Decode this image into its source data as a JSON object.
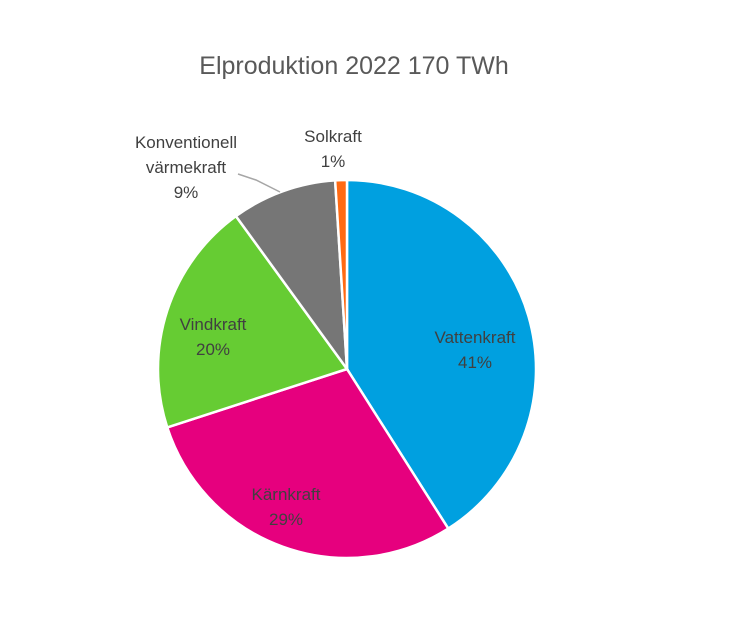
{
  "chart_data": {
    "type": "pie",
    "title": "Elproduktion 2022 170 TWh",
    "start_angle_deg": 0,
    "direction": "clockwise",
    "slices": [
      {
        "name": "Vattenkraft",
        "value": 41,
        "label": "41%",
        "color": "#00A0E0"
      },
      {
        "name": "Kärnkraft",
        "value": 29,
        "label": "29%",
        "color": "#E6007E"
      },
      {
        "name": "Vindkraft",
        "value": 20,
        "label": "20%",
        "color": "#66CC33"
      },
      {
        "name": "Konventionell värmekraft",
        "label_lines": [
          "Konventionell",
          "värmekraft"
        ],
        "value": 9,
        "label": "9%",
        "color": "#767676"
      },
      {
        "name": "Solkraft",
        "value": 1,
        "label": "1%",
        "color": "#FF6A13"
      }
    ]
  }
}
